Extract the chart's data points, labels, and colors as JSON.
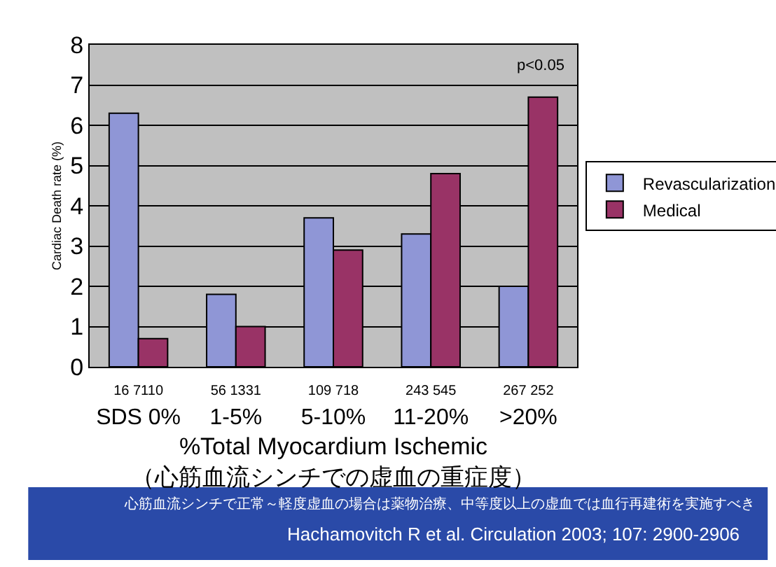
{
  "chart_data": {
    "type": "bar",
    "categories": [
      "16 7110\nSDS 0%",
      "56 1331\n1-5%",
      "109 718\n5-10%",
      "243 545\n11-20%",
      "267 252\n>20%"
    ],
    "series": [
      {
        "name": "Revascularization",
        "color": "#8f96d6",
        "values": [
          6.3,
          1.8,
          3.7,
          3.3,
          2.0
        ]
      },
      {
        "name": "Medical",
        "color": "#993366",
        "values": [
          0.7,
          1.0,
          2.9,
          4.8,
          6.7
        ]
      }
    ],
    "ylabel": "Cardiac Death rate (%)",
    "xlabel": "%Total Myocardium Ischemic\n（心筋血流シンチでの虚血の重症度）",
    "ylim": [
      0,
      8
    ],
    "yticks": [
      0,
      1,
      2,
      3,
      4,
      5,
      6,
      7,
      8
    ],
    "grid": "y",
    "legend": "right",
    "annotations": [
      "p<0.05",
      "心筋血流シンチで正常～軽度虚血の場合は薬物治療、中等度以上の虚血では血行再建術を実施すべき",
      "Hachamovitch R et al. Circulation 2003; 107: 2900-2906"
    ]
  }
}
